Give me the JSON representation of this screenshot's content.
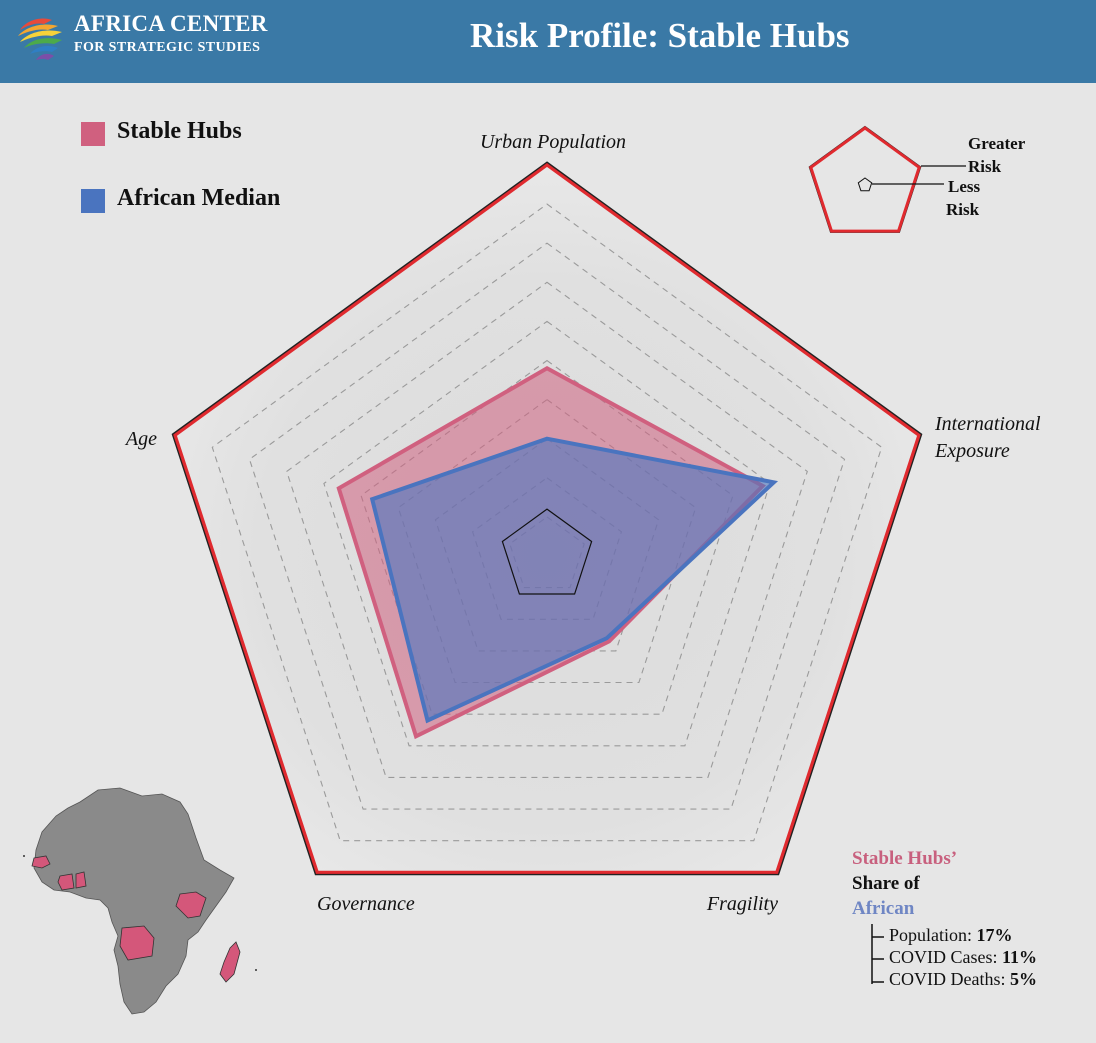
{
  "header": {
    "org_line1": "AFRICA CENTER",
    "org_line2": "FOR STRATEGIC STUDIES",
    "title": "Risk Profile: Stable Hubs",
    "background_color": "#3a79a6"
  },
  "legend": [
    {
      "label": "Stable Hubs",
      "color": "#d0607f"
    },
    {
      "label": "African Median",
      "color": "#4a74bf"
    }
  ],
  "risk_key": {
    "greater": [
      "Greater",
      "Risk"
    ],
    "less": [
      "Less",
      "Risk"
    ]
  },
  "chart_data": {
    "type": "radar",
    "axes": [
      "Urban Population",
      "International Exposure",
      "Fragility",
      "Governance",
      "Age"
    ],
    "series": [
      {
        "name": "Stable Hubs",
        "color": "#d0607f",
        "values": [
          0.48,
          0.58,
          0.27,
          0.57,
          0.56
        ]
      },
      {
        "name": "African Median",
        "color": "#4a74bf",
        "values": [
          0.3,
          0.61,
          0.26,
          0.52,
          0.47
        ]
      }
    ],
    "range": [
      0,
      1
    ],
    "gridlines": [
      0.1,
      0.2,
      0.3,
      0.4,
      0.5,
      0.6,
      0.7,
      0.8,
      0.9
    ],
    "inner_reference": 0.12,
    "outer_border_color": "#e02a2f"
  },
  "share": {
    "title_part1": "Stable Hubs’",
    "title_part2": "Share of",
    "title_part3": "African",
    "title_colors": [
      "#c8607e",
      "#111111",
      "#6f86c4"
    ],
    "stats": [
      {
        "label": "Population: ",
        "value": "17%"
      },
      {
        "label": "COVID Cases: ",
        "value": "11%"
      },
      {
        "label": "COVID Deaths: ",
        "value": "5%"
      }
    ]
  },
  "map": {
    "land_color": "#8a8a8a",
    "highlight_color": "#d4577a"
  }
}
